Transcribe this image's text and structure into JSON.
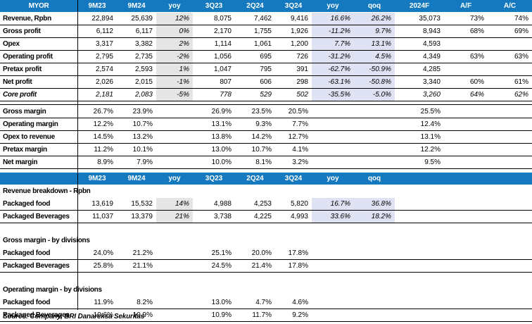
{
  "table1": {
    "headers": [
      "MYOR",
      "9M23",
      "9M24",
      "yoy",
      "3Q23",
      "2Q24",
      "3Q24",
      "yoy",
      "qoq",
      "2024F",
      "A/F",
      "A/C"
    ],
    "rows": [
      {
        "label": "Revenue, Rpbn",
        "italic": false,
        "v": [
          "22,894",
          "25,639",
          "12%",
          "8,075",
          "7,462",
          "9,416",
          "16.6%",
          "26.2%",
          "35,073",
          "73%",
          "74%"
        ]
      },
      {
        "label": "Gross profit",
        "italic": false,
        "v": [
          "6,112",
          "6,117",
          "0%",
          "2,170",
          "1,755",
          "1,926",
          "-11.2%",
          "9.7%",
          "8,943",
          "68%",
          "69%"
        ]
      },
      {
        "label": "Opex",
        "italic": false,
        "v": [
          "3,317",
          "3,382",
          "2%",
          "1,114",
          "1,061",
          "1,200",
          "7.7%",
          "13.1%",
          "4,593",
          "",
          ""
        ]
      },
      {
        "label": "Operating profit",
        "italic": false,
        "v": [
          "2,795",
          "2,735",
          "-2%",
          "1,056",
          "695",
          "726",
          "-31.2%",
          "4.5%",
          "4,349",
          "63%",
          "63%"
        ]
      },
      {
        "label": "Pretax profit",
        "italic": false,
        "v": [
          "2,574",
          "2,593",
          "1%",
          "1,047",
          "795",
          "391",
          "-62.7%",
          "-50.9%",
          "4,285",
          "",
          ""
        ]
      },
      {
        "label": "Net profit",
        "italic": false,
        "v": [
          "2,026",
          "2,015",
          "-1%",
          "807",
          "606",
          "298",
          "-63.1%",
          "-50.8%",
          "3,340",
          "60%",
          "61%"
        ]
      },
      {
        "label": "Core profit",
        "italic": true,
        "v": [
          "2,181",
          "2,083",
          "-5%",
          "778",
          "529",
          "502",
          "-35.5%",
          "-5.0%",
          "3,260",
          "64%",
          "62%"
        ]
      }
    ],
    "margins": [
      {
        "label": "Gross margin",
        "v": [
          "26.7%",
          "23.9%",
          "",
          "26.9%",
          "23.5%",
          "20.5%",
          "",
          "",
          "25.5%",
          "",
          ""
        ]
      },
      {
        "label": "Operating margin",
        "v": [
          "12.2%",
          "10.7%",
          "",
          "13.1%",
          "9.3%",
          "7.7%",
          "",
          "",
          "12.4%",
          "",
          ""
        ]
      },
      {
        "label": "Opex to revenue",
        "v": [
          "14.5%",
          "13.2%",
          "",
          "13.8%",
          "14.2%",
          "12.7%",
          "",
          "",
          "13.1%",
          "",
          ""
        ]
      },
      {
        "label": "Pretax margin",
        "v": [
          "11.2%",
          "10.1%",
          "",
          "13.0%",
          "10.7%",
          "4.1%",
          "",
          "",
          "12.2%",
          "",
          ""
        ]
      },
      {
        "label": "Net margin",
        "v": [
          "8.9%",
          "7.9%",
          "",
          "10.0%",
          "8.1%",
          "3.2%",
          "",
          "",
          "9.5%",
          "",
          ""
        ]
      }
    ]
  },
  "table2": {
    "headers": [
      "",
      "9M23",
      "9M24",
      "yoy",
      "3Q23",
      "2Q24",
      "3Q24",
      "yoy",
      "qoq"
    ],
    "revenue_title": "Revenue breakdown - Rpbn",
    "revenue_rows": [
      {
        "label": "Packaged food",
        "v": [
          "13,619",
          "15,532",
          "14%",
          "4,988",
          "4,253",
          "5,820",
          "16.7%",
          "36.8%"
        ]
      },
      {
        "label": "Packaged Beverages",
        "v": [
          "11,037",
          "13,379",
          "21%",
          "3,738",
          "4,225",
          "4,993",
          "33.6%",
          "18.2%"
        ]
      }
    ],
    "gm_title": "Gross margin - by divisions",
    "gm_rows": [
      {
        "label": "Packaged food",
        "v": [
          "24.0%",
          "21.2%",
          "",
          "25.1%",
          "20.0%",
          "17.8%",
          "",
          ""
        ]
      },
      {
        "label": "Packaged Beverages",
        "v": [
          "25.8%",
          "21.1%",
          "",
          "24.5%",
          "21.4%",
          "17.8%",
          "",
          ""
        ]
      }
    ],
    "om_title": "Operating margin - by divisions",
    "om_rows": [
      {
        "label": "Packaged food",
        "v": [
          "11.9%",
          "8.2%",
          "",
          "13.0%",
          "4.7%",
          "4.6%",
          "",
          ""
        ]
      },
      {
        "label": "Packaged Beverages",
        "v": [
          "10.6%",
          "10.9%",
          "",
          "10.9%",
          "11.7%",
          "9.2%",
          "",
          ""
        ]
      }
    ]
  },
  "source": "Source: Company, BRI Danareksa Sekuritas",
  "colors": {
    "header": "#1479be",
    "shade_gray": "#e5e5e5",
    "shade_lavender": "#dfe2f3"
  }
}
